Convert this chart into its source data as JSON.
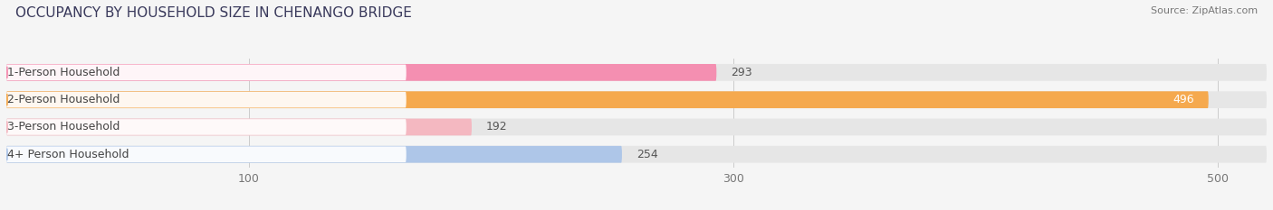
{
  "title": "OCCUPANCY BY HOUSEHOLD SIZE IN CHENANGO BRIDGE",
  "source": "Source: ZipAtlas.com",
  "categories": [
    "1-Person Household",
    "2-Person Household",
    "3-Person Household",
    "4+ Person Household"
  ],
  "values": [
    293,
    496,
    192,
    254
  ],
  "bar_colors": [
    "#f48fb1",
    "#f5a94e",
    "#f4b8c1",
    "#aec6e8"
  ],
  "bar_bg_color": "#e6e6e6",
  "label_bg_color": "#f5f5f5",
  "xlim_max": 520,
  "xticks": [
    100,
    300,
    500
  ],
  "title_fontsize": 11,
  "source_fontsize": 8,
  "tick_fontsize": 9,
  "bar_label_fontsize": 9,
  "category_fontsize": 9,
  "figsize": [
    14.06,
    2.33
  ],
  "dpi": 100,
  "bg_color": "#f5f5f5"
}
